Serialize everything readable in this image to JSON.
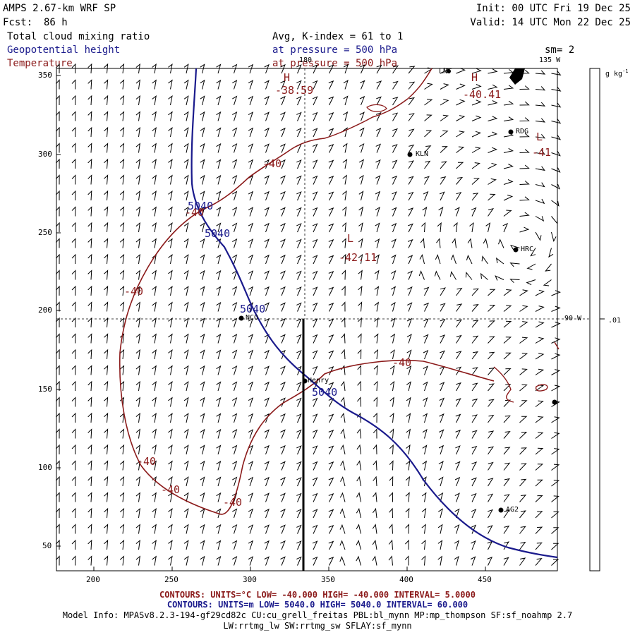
{
  "header": {
    "model": "AMPS 2.67-km WRF SP",
    "fcst_label": "Fcst:",
    "fcst_value": "86 h",
    "init": "Init: 00 UTC Fri 19 Dec 25",
    "valid": "Valid: 14 UTC Mon 22 Dec 25",
    "field1": "Total cloud mixing ratio",
    "field2": "Geopotential height",
    "field3": "Temperature",
    "avg": "Avg, K-index =  61 to   1",
    "press1": "at pressure =  500 hPa",
    "press2": "at pressure =  500 hPa",
    "sm": "sm= 2"
  },
  "map": {
    "x_ticks": [
      "200",
      "250",
      "300",
      "350",
      "400",
      "450"
    ],
    "y_ticks": [
      "350",
      "300",
      "250",
      "200",
      "150",
      "100",
      "50"
    ],
    "lon_top": "180",
    "lon_top_right": "135 W",
    "lon_right": "90 W",
    "temp_labels": [
      "-38.59",
      "-40.41",
      "-41",
      "-40",
      "-40",
      "-40",
      "-40",
      "-40",
      "-40",
      "-40",
      "-42.11"
    ],
    "height_labels": [
      "5040",
      "5040",
      "5040",
      "5040"
    ],
    "high_marks": [
      "H",
      "H"
    ],
    "low_marks": [
      "L",
      "L"
    ],
    "stations": [
      "LNT",
      "RDG",
      "KLN",
      "HRC",
      "NCO",
      "Henry",
      "AG2"
    ]
  },
  "colorbar": {
    "units": "g kg",
    "units_exp": "-1",
    "tick": ".01"
  },
  "footer": {
    "temp_contours": "CONTOURS:  UNITS=°C  LOW= -40.000      HIGH= -40.000      INTERVAL=   5.0000",
    "height_contours": "CONTOURS:  UNITS=m   LOW=  5040.0      HIGH=  5040.0      INTERVAL=   60.000",
    "model_info1": "Model Info: MPASv8.2.3-194-gf29cd82c CU:cu_grell_freitas PBL:bl_mynn MP:mp_thompson SF:sf_noahmp 2.7",
    "model_info2": "LW:rrtmg_lw SW:rrtmg_sw SFLAY:sf_mynn"
  },
  "colors": {
    "temperature": "#8b1a1a",
    "height": "#1a1a8c",
    "barbs": "#000000"
  }
}
